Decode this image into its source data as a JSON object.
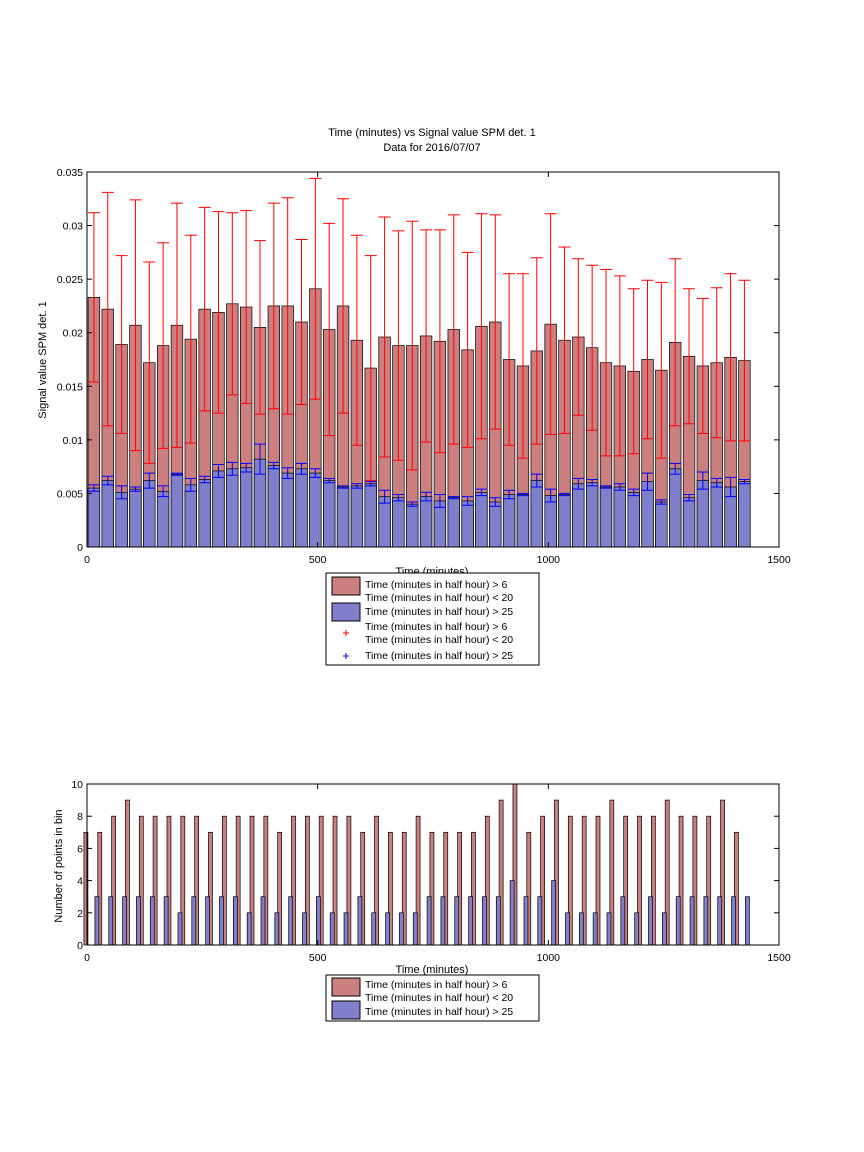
{
  "chart_data": [
    {
      "type": "bar",
      "title": "Time (minutes) vs Signal value SPM det. 1",
      "subtitle": "Data for 2016/07/07",
      "xlabel": "Time (minutes)",
      "ylabel": "Signal value SPM det. 1",
      "xlim": [
        0,
        1500
      ],
      "ylim": [
        0,
        0.035
      ],
      "xticks": [
        "0",
        "500",
        "1000",
        "1500"
      ],
      "xtick_values": [
        0,
        500,
        1000,
        1500
      ],
      "yticks": [
        "0",
        "0.005",
        "0.01",
        "0.015",
        "0.02",
        "0.025",
        "0.03",
        "0.035"
      ],
      "ytick_values": [
        0,
        0.005,
        0.01,
        0.015,
        0.02,
        0.025,
        0.03,
        0.035
      ],
      "grid": false,
      "legend_position": "below",
      "x": [
        15,
        45,
        75,
        105,
        135,
        165,
        195,
        225,
        255,
        285,
        315,
        345,
        375,
        405,
        435,
        465,
        495,
        525,
        555,
        585,
        615,
        645,
        675,
        705,
        735,
        765,
        795,
        825,
        855,
        885,
        915,
        945,
        975,
        1005,
        1035,
        1065,
        1095,
        1125,
        1155,
        1185,
        1215,
        1245,
        1275,
        1305,
        1335,
        1365,
        1395,
        1425
      ],
      "series": [
        {
          "name": "Time (minutes in half hour) > 6\nTime (minutes in half hour) < 20",
          "color": "#cc7f7f",
          "values": [
            0.0233,
            0.0222,
            0.0189,
            0.0207,
            0.0172,
            0.0188,
            0.0207,
            0.0194,
            0.0222,
            0.0219,
            0.0227,
            0.0224,
            0.0205,
            0.0225,
            0.0225,
            0.021,
            0.0241,
            0.0203,
            0.0225,
            0.0193,
            0.0167,
            0.0196,
            0.0188,
            0.0188,
            0.0197,
            0.0192,
            0.0203,
            0.0184,
            0.0206,
            0.021,
            0.0175,
            0.0169,
            0.0183,
            0.0208,
            0.0193,
            0.0196,
            0.0186,
            0.0172,
            0.0169,
            0.0164,
            0.0175,
            0.0165,
            0.0191,
            0.0178,
            0.0169,
            0.0172,
            0.0177,
            0.0174
          ],
          "errors": [
            0.0079,
            0.0109,
            0.0083,
            0.0117,
            0.0094,
            0.0096,
            0.0114,
            0.0097,
            0.0095,
            0.0094,
            0.0085,
            0.009,
            0.0081,
            0.0096,
            0.0101,
            0.0077,
            0.0103,
            0.0099,
            0.01,
            0.0098,
            0.0105,
            0.0112,
            0.0107,
            0.0116,
            0.0099,
            0.0104,
            0.0107,
            0.0091,
            0.0105,
            0.01,
            0.008,
            0.0086,
            0.0087,
            0.0103,
            0.0087,
            0.0073,
            0.0077,
            0.0087,
            0.0084,
            0.0077,
            0.0074,
            0.0082,
            0.0078,
            0.0063,
            0.0063,
            0.007,
            0.0078,
            0.0075
          ]
        },
        {
          "name": "Time (minutes in half hour) > 25",
          "color": "#7f7fcc",
          "values": [
            0.0055,
            0.0062,
            0.0051,
            0.0054,
            0.0062,
            0.0052,
            0.0068,
            0.0058,
            0.0063,
            0.0071,
            0.0073,
            0.0074,
            0.0082,
            0.0076,
            0.0069,
            0.0073,
            0.0069,
            0.0062,
            0.0056,
            0.0057,
            0.0059,
            0.0047,
            0.0046,
            0.004,
            0.0047,
            0.0043,
            0.0046,
            0.0043,
            0.0051,
            0.0042,
            0.0049,
            0.0049,
            0.0062,
            0.0048,
            0.0049,
            0.0059,
            0.006,
            0.0056,
            0.0056,
            0.0051,
            0.0061,
            0.0042,
            0.0073,
            0.0046,
            0.0062,
            0.006,
            0.0056,
            0.0061
          ],
          "errors": [
            0.0003,
            0.0004,
            0.0006,
            0.0002,
            0.0007,
            0.0005,
            0.0001,
            0.0006,
            0.0003,
            0.0006,
            0.0006,
            0.0004,
            0.0014,
            0.0003,
            0.0005,
            0.0005,
            0.0004,
            0.0002,
            0.0001,
            0.0002,
            0.0002,
            0.0006,
            0.0003,
            0.0002,
            0.0004,
            0.0006,
            0.0001,
            0.0004,
            0.0003,
            0.0004,
            0.0004,
            0.0001,
            0.0006,
            0.0006,
            0.0001,
            0.0005,
            0.0003,
            0.0001,
            0.0003,
            0.0003,
            0.0008,
            0.0002,
            0.0005,
            0.0003,
            0.0008,
            0.0004,
            0.0009,
            0.0002
          ]
        }
      ],
      "legend": [
        {
          "label": "Time (minutes in half hour) > 6",
          "marker": "red-patch"
        },
        {
          "label": "Time (minutes in half hour) < 20",
          "marker": ""
        },
        {
          "label": "Time (minutes in half hour) > 25",
          "marker": "blue-patch"
        },
        {
          "label": "Time (minutes in half hour) > 6",
          "marker": "red-plus"
        },
        {
          "label": "Time (minutes in half hour) < 20",
          "marker": ""
        },
        {
          "label": "Time (minutes in half hour) > 25",
          "marker": "blue-plus"
        }
      ]
    },
    {
      "type": "bar",
      "title": "",
      "xlabel": "Time (minutes)",
      "ylabel": "Number of points in bin",
      "xlim": [
        0,
        1500
      ],
      "ylim": [
        0,
        10
      ],
      "xticks": [
        "0",
        "500",
        "1000",
        "1500"
      ],
      "xtick_values": [
        0,
        500,
        1000,
        1500
      ],
      "yticks": [
        "0",
        "2",
        "4",
        "6",
        "8",
        "10"
      ],
      "ytick_values": [
        0,
        2,
        4,
        6,
        8,
        10
      ],
      "grid": false,
      "legend_position": "below",
      "x": [
        15,
        45,
        75,
        105,
        135,
        165,
        195,
        225,
        255,
        285,
        315,
        345,
        375,
        405,
        435,
        465,
        495,
        525,
        555,
        585,
        615,
        645,
        675,
        705,
        735,
        765,
        795,
        825,
        855,
        885,
        915,
        945,
        975,
        1005,
        1035,
        1065,
        1095,
        1125,
        1155,
        1185,
        1215,
        1245,
        1275,
        1305,
        1335,
        1365,
        1395,
        1425
      ],
      "series": [
        {
          "name": "Time (minutes in half hour) > 6\nTime (minutes in half hour) < 20",
          "color": "#cc7f7f",
          "values": [
            7,
            7,
            8,
            9,
            8,
            8,
            8,
            8,
            8,
            7,
            8,
            8,
            8,
            8,
            7,
            8,
            8,
            8,
            8,
            8,
            7,
            8,
            7,
            7,
            8,
            7,
            7,
            7,
            7,
            8,
            9,
            10,
            7,
            8,
            9,
            8,
            8,
            8,
            9,
            8,
            8,
            8,
            9,
            8,
            8,
            8,
            9,
            7
          ]
        },
        {
          "name": "Time (minutes in half hour) > 25",
          "color": "#7f7fcc",
          "values": [
            3,
            3,
            3,
            3,
            3,
            3,
            2,
            3,
            3,
            3,
            3,
            2,
            3,
            2,
            3,
            2,
            3,
            2,
            2,
            3,
            2,
            2,
            2,
            2,
            3,
            3,
            3,
            3,
            3,
            3,
            4,
            3,
            3,
            4,
            2,
            2,
            2,
            2,
            3,
            2,
            3,
            2,
            3,
            3,
            3,
            3,
            3,
            3
          ]
        }
      ],
      "legend": [
        {
          "label": "Time (minutes in half hour) > 6",
          "marker": "red-patch"
        },
        {
          "label": "Time (minutes in half hour) < 20",
          "marker": ""
        },
        {
          "label": "Time (minutes in half hour) > 25",
          "marker": "blue-patch"
        }
      ]
    }
  ]
}
